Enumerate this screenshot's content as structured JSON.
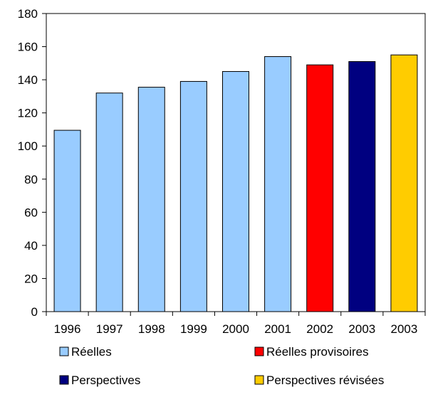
{
  "chart_data": {
    "type": "bar",
    "categories": [
      "1996",
      "1997",
      "1998",
      "1999",
      "2000",
      "2001",
      "2002",
      "2003",
      "2003"
    ],
    "values": [
      109.5,
      132,
      135.5,
      139,
      145,
      154,
      149,
      151,
      155
    ],
    "series_index": [
      0,
      0,
      0,
      0,
      0,
      0,
      1,
      2,
      3
    ],
    "ylim": [
      0,
      180
    ],
    "yticks": [
      0,
      20,
      40,
      60,
      80,
      100,
      120,
      140,
      160,
      180
    ],
    "grid": false,
    "legend_placement": "bottom",
    "series": [
      {
        "name": "Réelles",
        "color": "#99ccff"
      },
      {
        "name": "Réelles provisoires",
        "color": "#ff0000"
      },
      {
        "name": "Perspectives",
        "color": "#000080"
      },
      {
        "name": "Perspectives révisées",
        "color": "#ffcc00"
      }
    ]
  }
}
